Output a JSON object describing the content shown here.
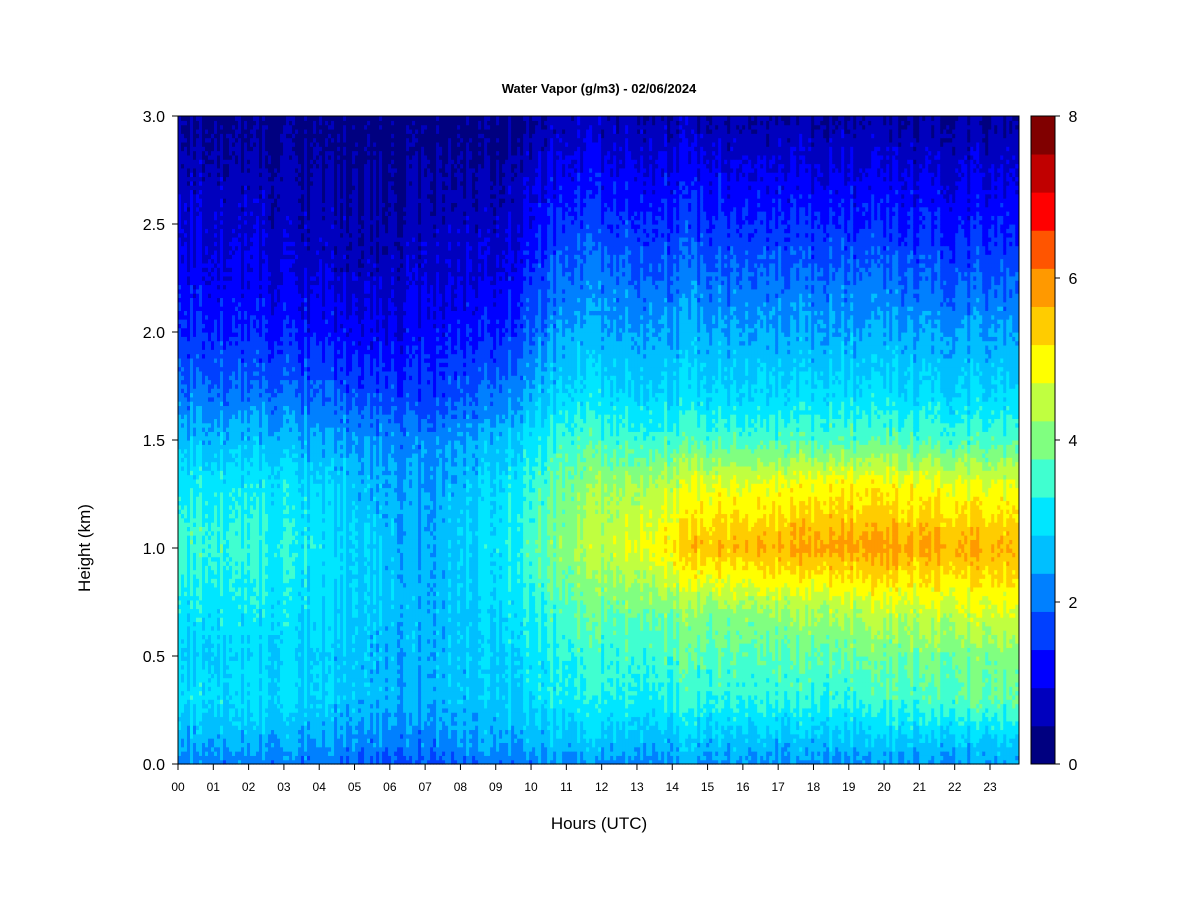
{
  "chart_data": {
    "type": "heatmap",
    "title": "Water Vapor (g/m3) - 02/06/2024",
    "xlabel": "Hours (UTC)",
    "ylabel": "Height (km)",
    "xlim": [
      0,
      24
    ],
    "ylim": [
      0,
      3.0
    ],
    "x_tick_labels": [
      "00",
      "01",
      "02",
      "03",
      "04",
      "05",
      "06",
      "07",
      "08",
      "09",
      "10",
      "11",
      "12",
      "13",
      "14",
      "15",
      "16",
      "17",
      "18",
      "19",
      "20",
      "21",
      "22",
      "23"
    ],
    "y_tick_labels": [
      "0.0",
      "0.5",
      "1.0",
      "1.5",
      "2.0",
      "2.5",
      "3.0"
    ],
    "y_ticks": [
      0.0,
      0.5,
      1.0,
      1.5,
      2.0,
      2.5,
      3.0
    ],
    "colorbar": {
      "label_values": [
        "0",
        "2",
        "4",
        "6",
        "8"
      ],
      "min": 0,
      "max": 8,
      "levels": [
        0,
        0.5,
        1,
        1.5,
        2,
        2.5,
        3,
        3.5,
        4,
        4.5,
        5,
        5.5,
        6,
        6.5,
        7,
        7.5,
        8
      ],
      "colors": [
        "#000080",
        "#0000BE",
        "#0000FF",
        "#0040FF",
        "#0080FF",
        "#00BFFF",
        "#00E6FF",
        "#40FFD0",
        "#80FF80",
        "#C0FF40",
        "#FFFF00",
        "#FFCC00",
        "#FF9900",
        "#FF5500",
        "#FF0000",
        "#C00000",
        "#800000"
      ]
    },
    "hours": [
      0,
      1,
      2,
      3,
      4,
      5,
      6,
      7,
      8,
      9,
      10,
      10.4,
      11,
      12,
      13,
      14,
      15,
      16,
      17,
      18,
      19,
      20,
      21,
      22,
      23,
      23.8
    ],
    "profiles": [
      {
        "hour": 0,
        "values_by_height_km": [
          [
            0.0,
            2.2
          ],
          [
            0.1,
            2.6
          ],
          [
            0.3,
            3.2
          ],
          [
            0.5,
            3.0
          ],
          [
            0.7,
            3.3
          ],
          [
            1.0,
            3.8
          ],
          [
            1.3,
            3.4
          ],
          [
            1.5,
            2.8
          ],
          [
            1.7,
            2.2
          ],
          [
            2.0,
            1.6
          ],
          [
            2.3,
            1.2
          ],
          [
            2.7,
            0.8
          ],
          [
            3.0,
            0.4
          ]
        ]
      },
      {
        "hour": 3,
        "values_by_height_km": [
          [
            0.0,
            2.2
          ],
          [
            0.1,
            2.6
          ],
          [
            0.3,
            3.1
          ],
          [
            0.5,
            3.0
          ],
          [
            0.7,
            3.2
          ],
          [
            1.0,
            3.5
          ],
          [
            1.3,
            3.2
          ],
          [
            1.5,
            2.7
          ],
          [
            1.7,
            2.1
          ],
          [
            2.0,
            1.4
          ],
          [
            2.3,
            0.9
          ],
          [
            2.7,
            0.6
          ],
          [
            3.0,
            0.3
          ]
        ]
      },
      {
        "hour": 6,
        "values_by_height_km": [
          [
            0.0,
            1.9
          ],
          [
            0.1,
            2.2
          ],
          [
            0.3,
            2.7
          ],
          [
            0.5,
            2.7
          ],
          [
            0.7,
            2.8
          ],
          [
            1.0,
            2.8
          ],
          [
            1.3,
            2.6
          ],
          [
            1.5,
            2.3
          ],
          [
            1.7,
            1.8
          ],
          [
            2.0,
            1.1
          ],
          [
            2.3,
            0.7
          ],
          [
            2.7,
            0.4
          ],
          [
            3.0,
            0.2
          ]
        ]
      },
      {
        "hour": 7,
        "values_by_height_km": [
          [
            0.0,
            1.8
          ],
          [
            0.1,
            2.2
          ],
          [
            0.3,
            2.6
          ],
          [
            0.5,
            2.6
          ],
          [
            0.7,
            2.6
          ],
          [
            1.0,
            2.5
          ],
          [
            1.3,
            2.4
          ],
          [
            1.5,
            2.2
          ],
          [
            1.7,
            1.6
          ],
          [
            2.0,
            1.2
          ],
          [
            2.3,
            0.8
          ],
          [
            2.7,
            0.5
          ],
          [
            3.0,
            0.2
          ]
        ]
      },
      {
        "hour": 9,
        "values_by_height_km": [
          [
            0.0,
            2.2
          ],
          [
            0.1,
            2.6
          ],
          [
            0.3,
            3.0
          ],
          [
            0.5,
            3.0
          ],
          [
            0.7,
            3.1
          ],
          [
            1.0,
            3.3
          ],
          [
            1.3,
            3.1
          ],
          [
            1.5,
            2.8
          ],
          [
            1.7,
            2.2
          ],
          [
            2.0,
            1.5
          ],
          [
            2.3,
            1.0
          ],
          [
            2.7,
            0.6
          ],
          [
            3.0,
            0.3
          ]
        ]
      },
      {
        "hour": 11,
        "values_by_height_km": [
          [
            0.0,
            2.4
          ],
          [
            0.1,
            2.8
          ],
          [
            0.3,
            3.4
          ],
          [
            0.5,
            3.6
          ],
          [
            0.7,
            3.9
          ],
          [
            1.0,
            4.4
          ],
          [
            1.3,
            4.2
          ],
          [
            1.5,
            3.8
          ],
          [
            1.7,
            3.2
          ],
          [
            2.0,
            2.6
          ],
          [
            2.3,
            2.1
          ],
          [
            2.7,
            1.3
          ],
          [
            3.0,
            0.7
          ]
        ]
      },
      {
        "hour": 15,
        "values_by_height_km": [
          [
            0.0,
            2.4
          ],
          [
            0.1,
            2.8
          ],
          [
            0.3,
            3.6
          ],
          [
            0.5,
            3.9
          ],
          [
            0.7,
            4.3
          ],
          [
            1.0,
            5.9
          ],
          [
            1.3,
            5.0
          ],
          [
            1.5,
            3.8
          ],
          [
            1.7,
            3.1
          ],
          [
            2.0,
            2.6
          ],
          [
            2.3,
            2.0
          ],
          [
            2.7,
            1.2
          ],
          [
            3.0,
            0.6
          ]
        ]
      },
      {
        "hour": 19,
        "values_by_height_km": [
          [
            0.0,
            2.4
          ],
          [
            0.1,
            2.8
          ],
          [
            0.3,
            3.6
          ],
          [
            0.5,
            4.0
          ],
          [
            0.7,
            4.6
          ],
          [
            1.0,
            6.2
          ],
          [
            1.3,
            5.3
          ],
          [
            1.5,
            3.9
          ],
          [
            1.7,
            3.2
          ],
          [
            2.0,
            2.6
          ],
          [
            2.3,
            2.0
          ],
          [
            2.7,
            1.1
          ],
          [
            3.0,
            0.5
          ]
        ]
      },
      {
        "hour": 23,
        "values_by_height_km": [
          [
            0.0,
            2.5
          ],
          [
            0.1,
            2.9
          ],
          [
            0.3,
            4.0
          ],
          [
            0.5,
            4.2
          ],
          [
            0.7,
            4.9
          ],
          [
            1.0,
            6.0
          ],
          [
            1.3,
            5.0
          ],
          [
            1.5,
            3.8
          ],
          [
            1.7,
            3.1
          ],
          [
            2.0,
            2.5
          ],
          [
            2.3,
            1.8
          ],
          [
            2.7,
            1.0
          ],
          [
            3.0,
            0.5
          ]
        ]
      }
    ]
  }
}
